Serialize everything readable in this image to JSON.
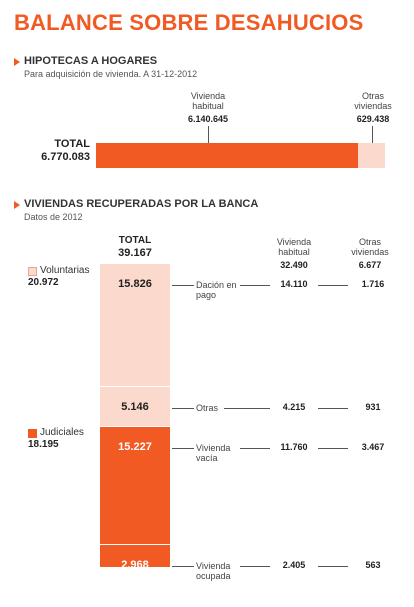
{
  "title": "BALANCE SOBRE DESAHUCIOS",
  "section1": {
    "heading": "HIPOTECAS A HOGARES",
    "sub": "Para adquisición de vivienda. A 31-12-2012",
    "col1_label": "Vivienda habitual",
    "col1_value": "6.140.645",
    "col2_label": "Otras viviendas",
    "col2_value": "629.438",
    "total_label": "TOTAL",
    "total_value": "6.770.083"
  },
  "section2": {
    "heading": "VIVIENDAS RECUPERADAS POR LA BANCA",
    "sub": "Datos de 2012",
    "total_label": "TOTAL",
    "total_value": "39.167",
    "col_habitual_label": "Vivienda habitual",
    "col_habitual_total": "32.490",
    "col_otras_label": "Otras viviendas",
    "col_otras_total": "6.677",
    "group_voluntarias": {
      "label": "Voluntarias",
      "value": "20.972"
    },
    "group_judiciales": {
      "label": "Judiciales",
      "value": "18.195"
    },
    "rows": [
      {
        "value": "15.826",
        "label": "Dación en pago",
        "habitual": "14.110",
        "otras": "1.716"
      },
      {
        "value": "5.146",
        "label": "Otras",
        "habitual": "4.215",
        "otras": "931"
      },
      {
        "value": "15.227",
        "label": "Vivienda vacía",
        "habitual": "11.760",
        "otras": "3.467"
      },
      {
        "value": "2.968",
        "label": "Vivienda ocupada",
        "habitual": "2.405",
        "otras": "563"
      }
    ]
  },
  "colors": {
    "accent": "#f15a22",
    "light": "#fbd9cc",
    "line": "#555555"
  },
  "chart_data": [
    {
      "type": "bar",
      "title": "HIPOTECAS A HOGARES",
      "subtitle": "Para adquisición de vivienda. A 31-12-2012",
      "categories": [
        "Vivienda habitual",
        "Otras viviendas"
      ],
      "values": [
        6140645,
        629438
      ],
      "total": 6770083,
      "stacked": true,
      "orientation": "horizontal"
    },
    {
      "type": "bar",
      "title": "VIVIENDAS RECUPERADAS POR LA BANCA",
      "subtitle": "Datos de 2012",
      "categories": [
        "Dación en pago",
        "Otras",
        "Vivienda vacía",
        "Vivienda ocupada"
      ],
      "values": [
        15826,
        5146,
        15227,
        2968
      ],
      "groups": [
        {
          "name": "Voluntarias",
          "total": 20972,
          "categories": [
            "Dación en pago",
            "Otras"
          ]
        },
        {
          "name": "Judiciales",
          "total": 18195,
          "categories": [
            "Vivienda vacía",
            "Vivienda ocupada"
          ]
        }
      ],
      "series": [
        {
          "name": "Vivienda habitual",
          "values": [
            14110,
            4215,
            11760,
            2405
          ],
          "total": 32490
        },
        {
          "name": "Otras viviendas",
          "values": [
            1716,
            931,
            3467,
            563
          ],
          "total": 6677
        }
      ],
      "total": 39167,
      "stacked": true,
      "orientation": "vertical"
    }
  ]
}
